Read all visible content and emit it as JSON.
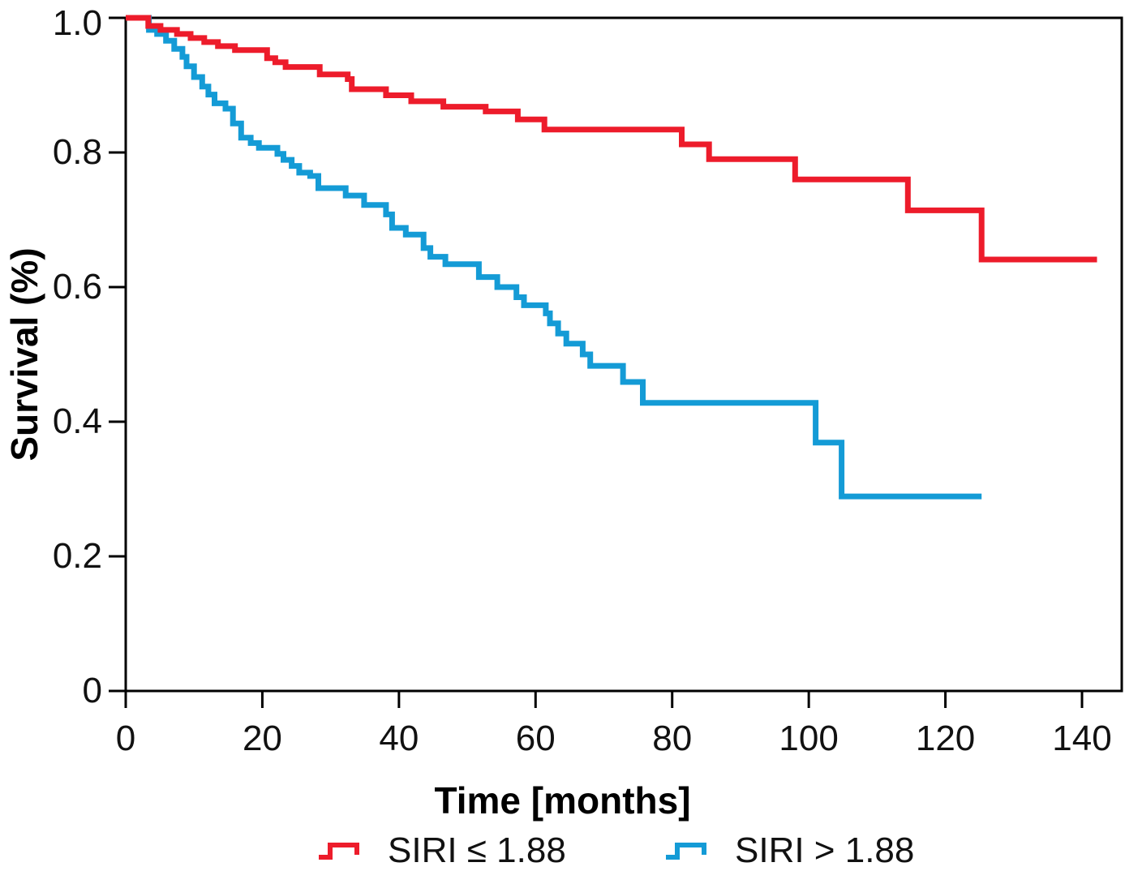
{
  "chart_data": {
    "type": "line",
    "variant": "kaplan-meier-step",
    "title": "",
    "xlabel": "Time [months]",
    "ylabel": "Survival (%)",
    "xlim": [
      0,
      145.8
    ],
    "ylim": [
      0,
      1.0
    ],
    "grid": false,
    "legend_position": "bottom",
    "x_ticks": [
      0,
      20,
      40,
      60,
      80,
      100,
      120,
      140
    ],
    "x_tick_labels": [
      "0",
      "20",
      "40",
      "60",
      "80",
      "100",
      "120",
      "140"
    ],
    "y_ticks": [
      1.0,
      0.8,
      0.6,
      0.4,
      0.2,
      0
    ],
    "y_tick_labels": [
      "1.0",
      "0.8",
      "0.6",
      "0.4",
      "0.2",
      "0"
    ],
    "series": [
      {
        "name": "SIRI ≤ 1.88",
        "color": "#ed1c2b",
        "start": [
          0,
          1.0
        ],
        "end_time": 142.2,
        "points": [
          [
            3.3,
            0.988
          ],
          [
            5.1,
            0.982
          ],
          [
            7.5,
            0.976
          ],
          [
            9.5,
            0.97
          ],
          [
            11.5,
            0.964
          ],
          [
            13.5,
            0.958
          ],
          [
            16.0,
            0.952
          ],
          [
            20.7,
            0.94
          ],
          [
            21.9,
            0.934
          ],
          [
            23.4,
            0.927
          ],
          [
            28.4,
            0.916
          ],
          [
            32.5,
            0.909
          ],
          [
            33.1,
            0.894
          ],
          [
            38.1,
            0.885
          ],
          [
            41.8,
            0.876
          ],
          [
            46.5,
            0.868
          ],
          [
            52.7,
            0.861
          ],
          [
            57.4,
            0.849
          ],
          [
            61.3,
            0.834
          ],
          [
            81.4,
            0.812
          ],
          [
            85.4,
            0.79
          ],
          [
            98.0,
            0.76
          ],
          [
            114.5,
            0.714
          ],
          [
            125.3,
            0.641
          ]
        ]
      },
      {
        "name": "SIRI > 1.88",
        "color": "#149bd6",
        "start": [
          0,
          1.0
        ],
        "end_time": 125.3,
        "points": [
          [
            3.4,
            0.982
          ],
          [
            4.6,
            0.976
          ],
          [
            5.9,
            0.966
          ],
          [
            7.1,
            0.954
          ],
          [
            8.3,
            0.942
          ],
          [
            8.9,
            0.928
          ],
          [
            10.0,
            0.912
          ],
          [
            11.2,
            0.898
          ],
          [
            12.1,
            0.886
          ],
          [
            13.0,
            0.873
          ],
          [
            14.6,
            0.865
          ],
          [
            15.7,
            0.843
          ],
          [
            16.9,
            0.822
          ],
          [
            18.3,
            0.814
          ],
          [
            19.5,
            0.807
          ],
          [
            22.2,
            0.798
          ],
          [
            23.1,
            0.789
          ],
          [
            24.3,
            0.78
          ],
          [
            25.4,
            0.77
          ],
          [
            27.0,
            0.765
          ],
          [
            28.2,
            0.747
          ],
          [
            32.2,
            0.736
          ],
          [
            34.9,
            0.722
          ],
          [
            38.1,
            0.708
          ],
          [
            39.0,
            0.688
          ],
          [
            41.0,
            0.678
          ],
          [
            43.6,
            0.658
          ],
          [
            44.6,
            0.645
          ],
          [
            46.8,
            0.634
          ],
          [
            51.7,
            0.615
          ],
          [
            54.4,
            0.6
          ],
          [
            57.2,
            0.585
          ],
          [
            58.3,
            0.573
          ],
          [
            61.5,
            0.561
          ],
          [
            62.1,
            0.546
          ],
          [
            63.3,
            0.531
          ],
          [
            64.5,
            0.516
          ],
          [
            66.9,
            0.5
          ],
          [
            68.0,
            0.483
          ],
          [
            72.8,
            0.459
          ],
          [
            75.7,
            0.428
          ],
          [
            101.0,
            0.369
          ],
          [
            104.8,
            0.289
          ]
        ]
      }
    ]
  },
  "axes": {
    "x_label": "Time [months]",
    "y_label": "Survival (%)",
    "spine_color": "#000000"
  },
  "legend": {
    "items": [
      {
        "label": "SIRI ≤ 1.88",
        "color": "#ed1c2b"
      },
      {
        "label": "SIRI > 1.88",
        "color": "#149bd6"
      }
    ]
  }
}
